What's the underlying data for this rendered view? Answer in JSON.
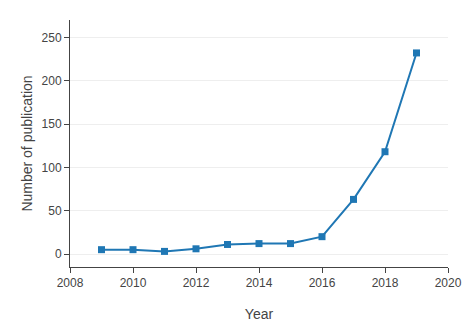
{
  "chart_data": {
    "type": "line",
    "x": [
      2009,
      2010,
      2011,
      2012,
      2013,
      2014,
      2015,
      2016,
      2017,
      2018,
      2019
    ],
    "values": [
      5,
      5,
      3,
      6,
      11,
      12,
      12,
      20,
      63,
      118,
      232
    ],
    "xlabel": "Year",
    "ylabel": "Number of publication",
    "xlim": [
      2008,
      2020
    ],
    "ylim": [
      -15,
      270
    ],
    "xticks": [
      2008,
      2010,
      2012,
      2014,
      2016,
      2018,
      2020
    ],
    "yticks": [
      0,
      50,
      100,
      150,
      200,
      250
    ],
    "grid": "y",
    "marker": "square"
  }
}
